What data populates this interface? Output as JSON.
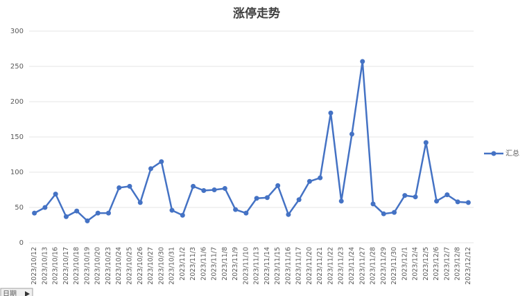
{
  "chart_data": {
    "type": "line",
    "title": "涨停走势",
    "categories": [
      "2023/10/12",
      "2023/10/13",
      "2023/10/16",
      "2023/10/17",
      "2023/10/18",
      "2023/10/19",
      "2023/10/20",
      "2023/10/23",
      "2023/10/24",
      "2023/10/25",
      "2023/10/26",
      "2023/10/27",
      "2023/10/30",
      "2023/10/31",
      "2023/11/2",
      "2023/11/3",
      "2023/11/6",
      "2023/11/7",
      "2023/11/8",
      "2023/11/9",
      "2023/11/10",
      "2023/11/13",
      "2023/11/14",
      "2023/11/15",
      "2023/11/16",
      "2023/11/17",
      "2023/11/20",
      "2023/11/21",
      "2023/11/22",
      "2023/11/23",
      "2023/11/24",
      "2023/11/27",
      "2023/11/28",
      "2023/11/29",
      "2023/11/30",
      "2023/12/1",
      "2023/12/4",
      "2023/12/5",
      "2023/12/6",
      "2023/12/7",
      "2023/12/8",
      "2023/12/12"
    ],
    "series": [
      {
        "name": "汇总",
        "color": "#4472c4",
        "values": [
          42,
          50,
          69,
          37,
          45,
          31,
          42,
          42,
          78,
          80,
          57,
          105,
          115,
          46,
          39,
          80,
          74,
          75,
          77,
          47,
          42,
          63,
          64,
          81,
          40,
          61,
          87,
          92,
          184,
          59,
          154,
          257,
          55,
          41,
          43,
          67,
          65,
          142,
          59,
          68,
          58,
          57
        ]
      }
    ],
    "ylim": [
      0,
      300
    ],
    "yticks": [
      0,
      50,
      100,
      150,
      200,
      250,
      300
    ],
    "grid": true,
    "legend": "right",
    "field_button": "日期"
  }
}
